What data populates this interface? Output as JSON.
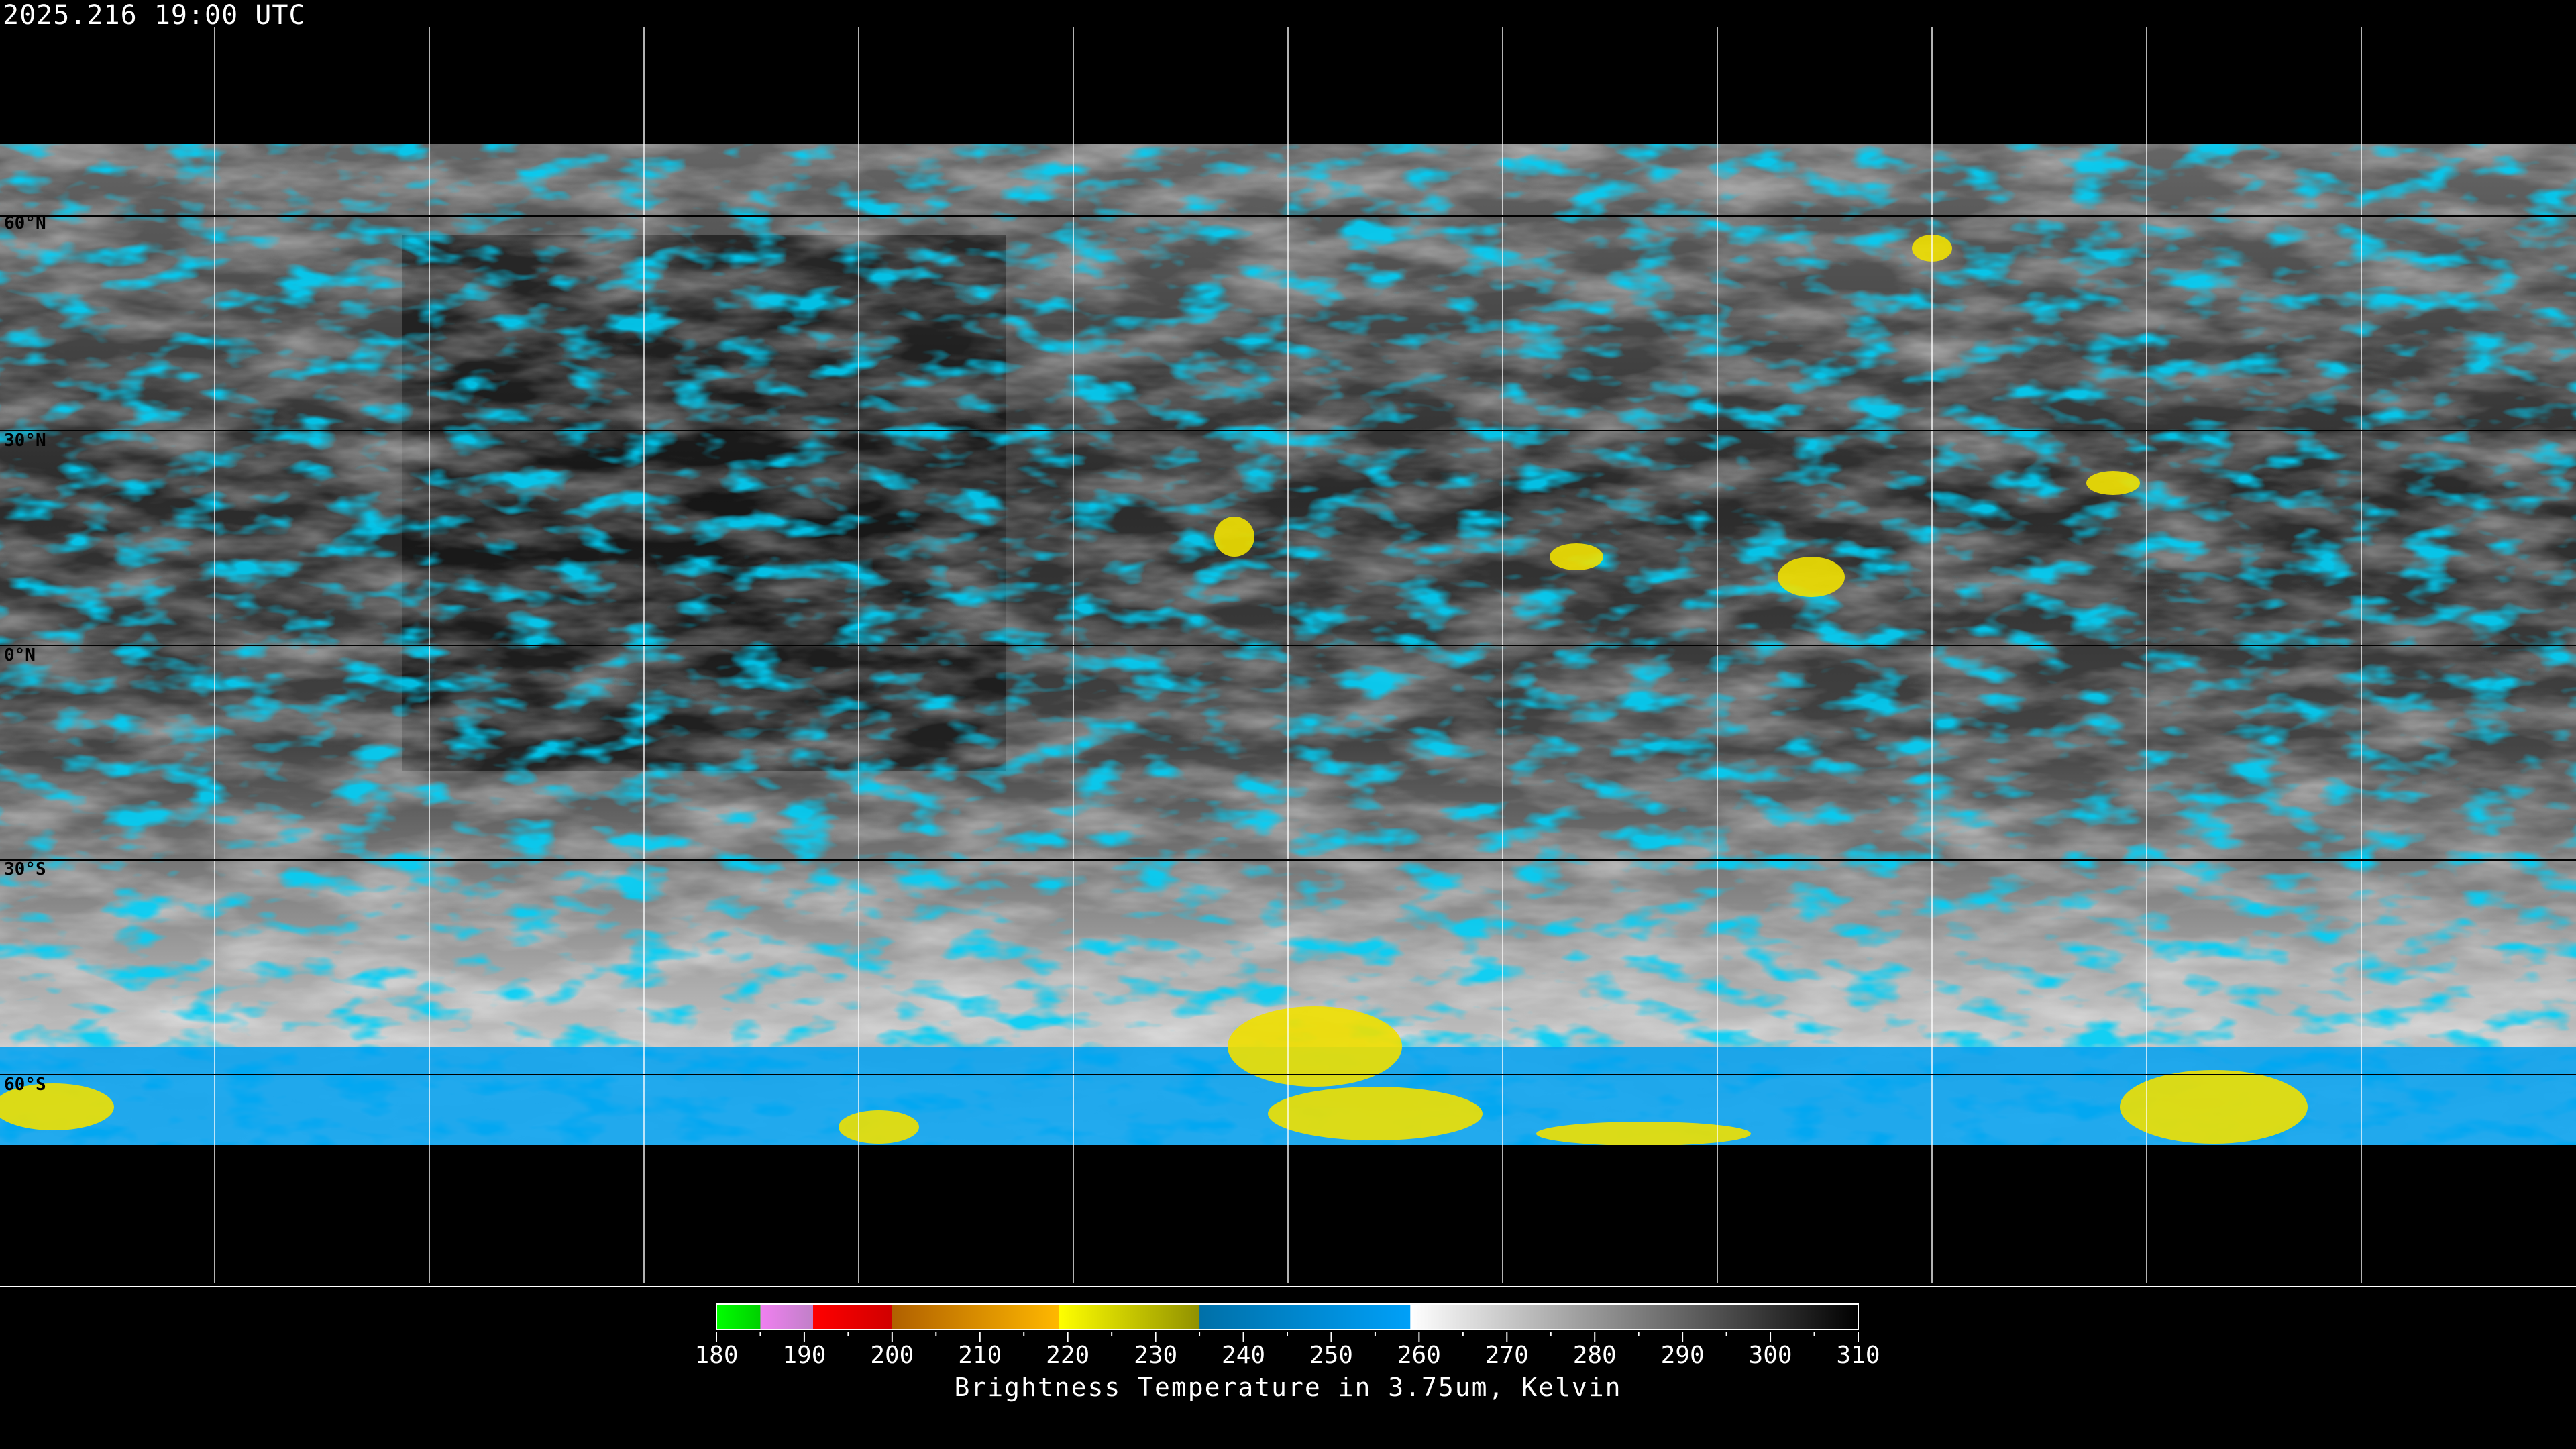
{
  "header": {
    "timestamp": "2025.216 19:00 UTC"
  },
  "map": {
    "projection": "equirectangular",
    "lat_labels": [
      "60°N",
      "30°N",
      "0°N",
      "30°S",
      "60°S"
    ],
    "lat_lines": [
      60,
      30,
      0,
      -30,
      -60
    ],
    "lon_lines": [
      -150,
      -120,
      -90,
      -60,
      -30,
      0,
      30,
      60,
      90,
      120,
      150
    ],
    "colors": {
      "background": "#000000",
      "gridline": "#ffffff",
      "cloud_cold": "#00a0f0",
      "cloud_colder": "#f0e000"
    }
  },
  "colorbar": {
    "title": "Brightness Temperature in 3.75um, Kelvin",
    "range": [
      180,
      310
    ],
    "tick_labels": [
      "180",
      "190",
      "200",
      "210",
      "220",
      "230",
      "240",
      "250",
      "260",
      "270",
      "280",
      "290",
      "300",
      "310"
    ],
    "segments": [
      {
        "from": 180,
        "to": 185,
        "start": "#00ff00",
        "end": "#00d000"
      },
      {
        "from": 185,
        "to": 191,
        "start": "#f080f0",
        "end": "#c080c8"
      },
      {
        "from": 191,
        "to": 200,
        "start": "#ff0000",
        "end": "#d00000"
      },
      {
        "from": 200,
        "to": 219,
        "start": "#b06000",
        "end": "#ffb800"
      },
      {
        "from": 219,
        "to": 235,
        "start": "#ffff00",
        "end": "#909000"
      },
      {
        "from": 235,
        "to": 259,
        "start": "#0070a8",
        "end": "#00a0f8"
      },
      {
        "from": 259,
        "to": 310,
        "start": "#ffffff",
        "end": "#000000"
      }
    ]
  }
}
